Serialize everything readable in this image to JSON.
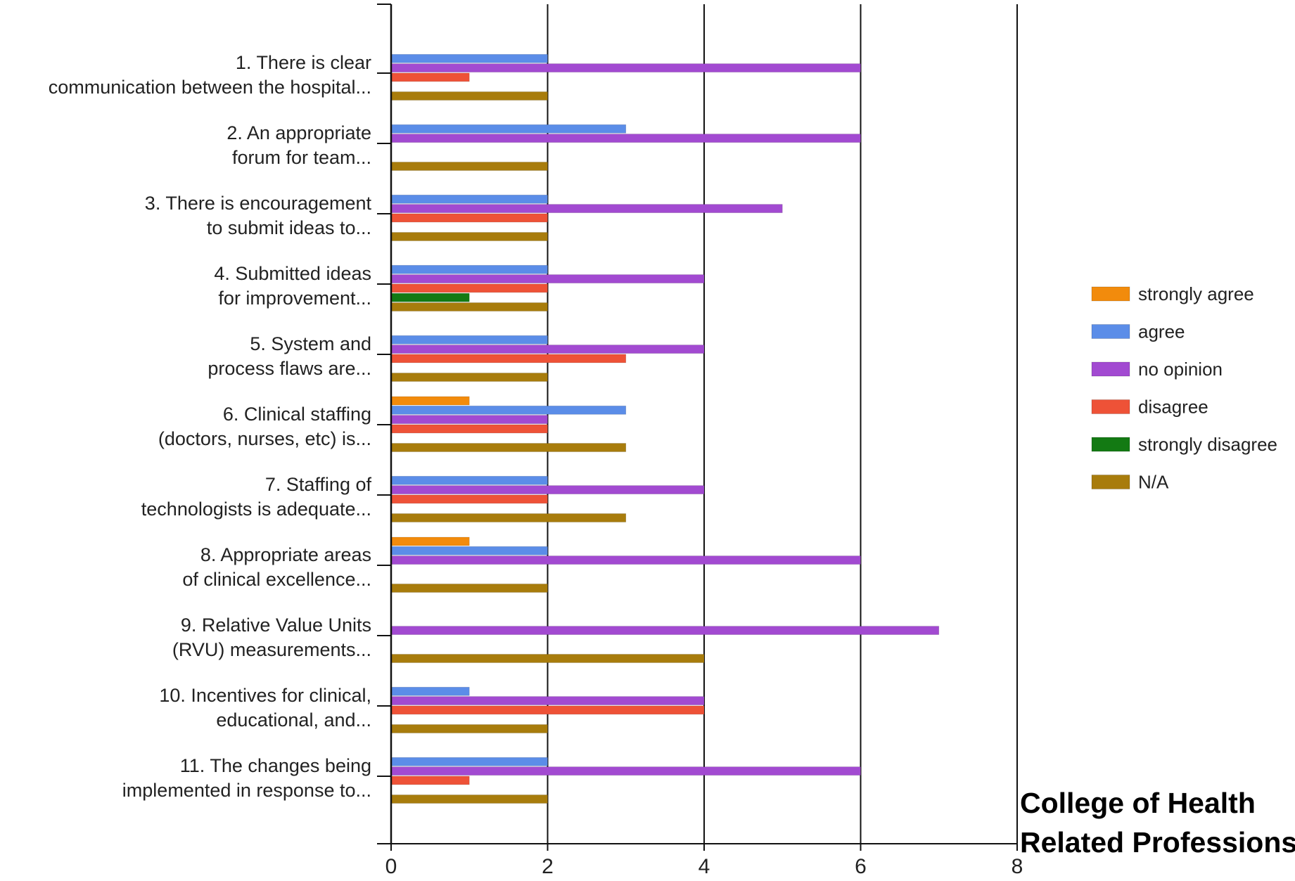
{
  "chart_data": {
    "type": "bar",
    "orientation": "horizontal",
    "categories": [
      [
        "1. There is clear",
        "communication between the hospital..."
      ],
      [
        "2. An appropriate",
        "forum for team..."
      ],
      [
        "3. There is encouragement",
        "to submit ideas to..."
      ],
      [
        "4. Submitted ideas",
        "for improvement..."
      ],
      [
        "5. System and",
        "process flaws are..."
      ],
      [
        "6. Clinical staffing",
        "(doctors, nurses, etc) is..."
      ],
      [
        "7. Staffing of",
        "technologists is adequate..."
      ],
      [
        "8. Appropriate areas",
        "of clinical excellence..."
      ],
      [
        "9. Relative Value Units",
        "(RVU) measurements..."
      ],
      [
        "10. Incentives for clinical,",
        "educational, and..."
      ],
      [
        "11. The changes being",
        "implemented in response to..."
      ]
    ],
    "series": [
      {
        "name": "strongly agree",
        "color": "#f28b0c",
        "values": [
          0,
          0,
          0,
          0,
          0,
          1,
          0,
          1,
          0,
          0,
          0
        ]
      },
      {
        "name": "agree",
        "color": "#5b8de8",
        "values": [
          2,
          3,
          2,
          2,
          2,
          3,
          2,
          2,
          0,
          1,
          2
        ]
      },
      {
        "name": "no opinion",
        "color": "#a24ad1",
        "values": [
          6,
          6,
          5,
          4,
          4,
          2,
          4,
          6,
          7,
          4,
          6
        ]
      },
      {
        "name": "disagree",
        "color": "#ee5237",
        "values": [
          1,
          0,
          2,
          2,
          3,
          2,
          2,
          0,
          0,
          4,
          1
        ]
      },
      {
        "name": "strongly disagree",
        "color": "#137a13",
        "values": [
          0,
          0,
          0,
          1,
          0,
          0,
          0,
          0,
          0,
          0,
          0
        ]
      },
      {
        "name": "N/A",
        "color": "#a87c0c",
        "values": [
          2,
          2,
          2,
          2,
          2,
          3,
          3,
          2,
          4,
          2,
          2
        ]
      }
    ],
    "xlim": [
      0,
      8
    ],
    "xticks": [
      "0",
      "2",
      "4",
      "6",
      "8"
    ],
    "grid": true,
    "legend_position": "right"
  },
  "footer": {
    "line1": "College of Health",
    "line2": "Related Professions"
  }
}
